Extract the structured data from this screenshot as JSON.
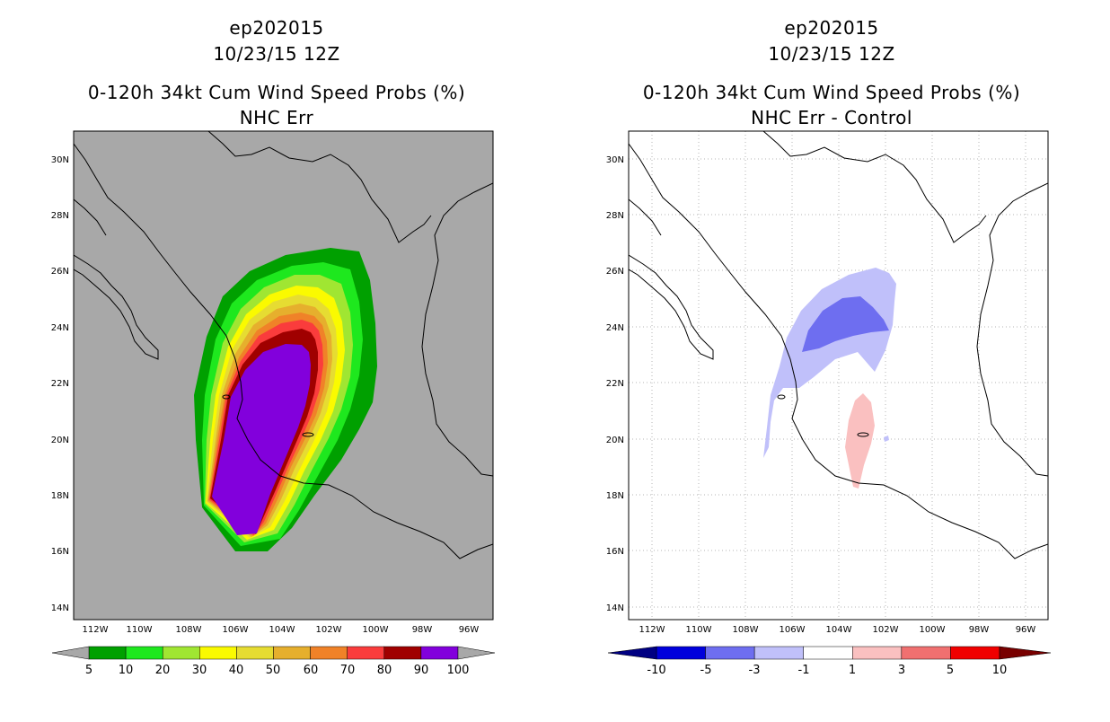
{
  "chart_data": [
    {
      "type": "heatmap",
      "panel": "left",
      "storm_id": "ep202015",
      "datetime": "10/23/15 12Z",
      "title": "0-120h 34kt Cum Wind Speed Probs (%)",
      "subtitle": "NHC Err",
      "xlim": [
        -113.5,
        -95.5
      ],
      "ylim": [
        13.5,
        31.0
      ],
      "x_ticks": [
        "112W",
        "110W",
        "108W",
        "106W",
        "104W",
        "102W",
        "100W",
        "98W",
        "96W"
      ],
      "y_ticks": [
        "30N",
        "28N",
        "26N",
        "24N",
        "22N",
        "20N",
        "18N",
        "16N",
        "14N"
      ],
      "grid": false,
      "background": "#a8a8a8",
      "colorbar": {
        "labels": [
          "5",
          "10",
          "20",
          "30",
          "40",
          "50",
          "60",
          "70",
          "80",
          "90",
          "100"
        ],
        "colors": [
          "#00a000",
          "#1ee81e",
          "#a0e632",
          "#fafa00",
          "#e6dc32",
          "#e6af2d",
          "#f08228",
          "#fa3c3c",
          "#a00000",
          "#8200dc"
        ],
        "extend_colors": [
          "#a8a8a8",
          "#a8a8a8"
        ]
      },
      "max_probability_region": "100",
      "peak_center_lon": -104.5,
      "peak_center_lat": 20.5
    },
    {
      "type": "heatmap",
      "panel": "right",
      "storm_id": "ep202015",
      "datetime": "10/23/15 12Z",
      "title": "0-120h 34kt Cum Wind Speed Probs (%)",
      "subtitle": "NHC Err - Control",
      "xlim": [
        -113.5,
        -95.5
      ],
      "ylim": [
        13.5,
        31.0
      ],
      "x_ticks": [
        "112W",
        "110W",
        "108W",
        "106W",
        "104W",
        "102W",
        "100W",
        "98W",
        "96W"
      ],
      "y_ticks": [
        "30N",
        "28N",
        "26N",
        "24N",
        "22N",
        "20N",
        "18N",
        "16N",
        "14N"
      ],
      "grid": true,
      "background": "#ffffff",
      "colorbar": {
        "labels": [
          "-10",
          "-5",
          "-3",
          "-1",
          "1",
          "3",
          "5",
          "10"
        ],
        "colors": [
          "#0000dc",
          "#6e6ef0",
          "#c0c0fa",
          "#ffffff",
          "#fac0c0",
          "#f07070",
          "#f00000"
        ],
        "extend_colors": [
          "#000082",
          "#780000"
        ]
      },
      "negative_region_value": "-3",
      "positive_region_value": "1"
    }
  ]
}
